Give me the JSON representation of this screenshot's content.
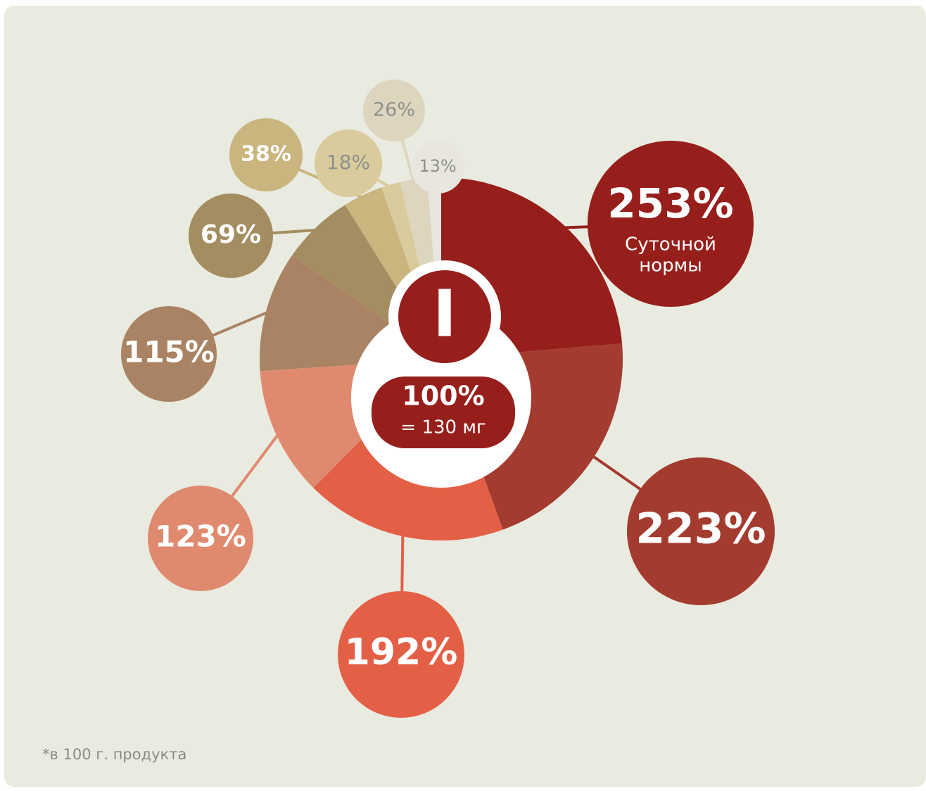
{
  "chart_data": {
    "type": "donut",
    "values": [
      253,
      223,
      192,
      123,
      115,
      69,
      38,
      18,
      26,
      13
    ],
    "value_labels": [
      "253%",
      "223%",
      "192%",
      "123%",
      "115%",
      "69%",
      "38%",
      "18%",
      "26%",
      "13%"
    ],
    "colors": [
      "#961f1b",
      "#a43b2f",
      "#e36046",
      "#df8a6f",
      "#a98363",
      "#a48d60",
      "#c9b57d",
      "#dacb9c",
      "#ddd5be",
      "#e8e6df"
    ],
    "label_colors": [
      "#ffffff",
      "#ffffff",
      "#ffffff",
      "#ffffff",
      "#ffffff",
      "#ffffff",
      "#ffffff",
      "#8e928c",
      "#8e928c",
      "#8e928c"
    ],
    "daily_norm_label": [
      "Суточной",
      "нормы"
    ],
    "element": "I",
    "reference_label": "100%",
    "reference_amount": "= 130 мг",
    "footnote": "*в 100 г. продукта"
  }
}
